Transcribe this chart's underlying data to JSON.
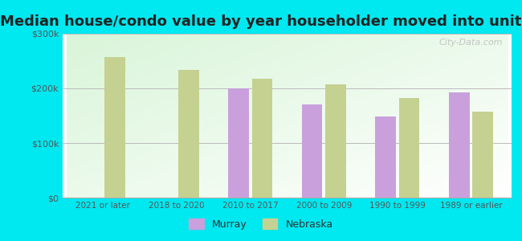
{
  "title": "Median house/condo value by year householder moved into unit",
  "categories": [
    "2021 or later",
    "2018 to 2020",
    "2010 to 2017",
    "2000 to 2009",
    "1990 to 1999",
    "1989 or earlier"
  ],
  "murray_values": [
    null,
    null,
    200000,
    170000,
    148000,
    193000
  ],
  "nebraska_values": [
    258000,
    234000,
    218000,
    207000,
    182000,
    158000
  ],
  "murray_color": "#c9a0dc",
  "nebraska_color": "#c5d190",
  "background_outer": "#00e8f0",
  "background_inner": "#e8f5e0",
  "ylim": [
    0,
    300000
  ],
  "yticks": [
    0,
    100000,
    200000,
    300000
  ],
  "ytick_labels": [
    "$0",
    "$100k",
    "$200k",
    "$300k"
  ],
  "title_fontsize": 13,
  "legend_labels": [
    "Murray",
    "Nebraska"
  ],
  "bar_width": 0.28,
  "watermark": "City-Data.com"
}
